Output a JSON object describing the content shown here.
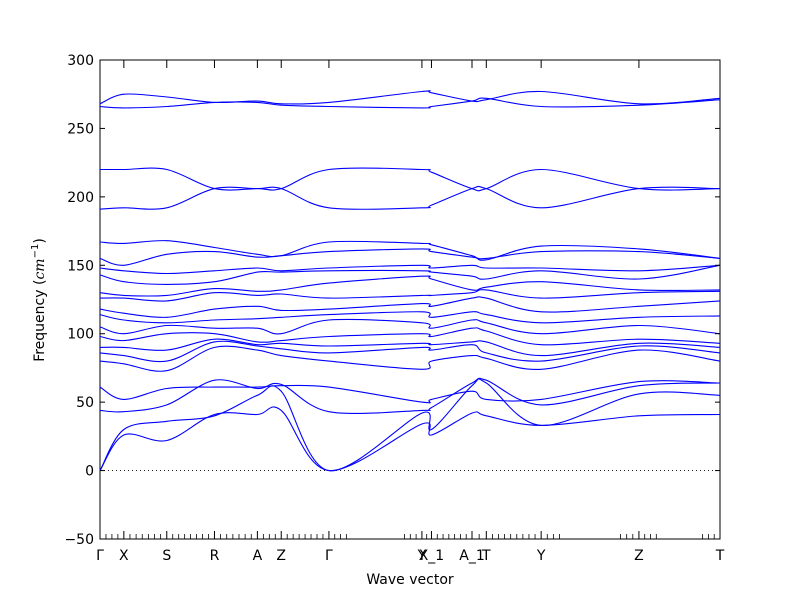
{
  "chart_data": {
    "type": "line",
    "xlabel": "Wave vector",
    "ylabel_main": "Frequency (",
    "ylabel_unit": "cm",
    "ylabel_sup": "−1",
    "ylabel_close": ")",
    "ylim": [
      -50,
      300
    ],
    "yticks": [
      "300",
      "250",
      "200",
      "150",
      "100",
      "50",
      "0",
      "−50"
    ],
    "ytick_values": [
      300,
      250,
      200,
      150,
      100,
      50,
      0,
      -50
    ],
    "xlim": [
      0,
      13
    ],
    "high_symmetry_points": [
      {
        "label": "Γ",
        "x": 0
      },
      {
        "label": "X",
        "x": 0.5
      },
      {
        "label": "S",
        "x": 1.4
      },
      {
        "label": "R",
        "x": 2.4
      },
      {
        "label": "A",
        "x": 3.3
      },
      {
        "label": "Z",
        "x": 3.8
      },
      {
        "label": "Γ",
        "x": 4.8
      },
      {
        "label": "Y",
        "x": 6.75
      },
      {
        "label": "X_1",
        "x": 6.95
      },
      {
        "label": "A_1",
        "x": 7.8
      },
      {
        "label": "T",
        "x": 8.1
      },
      {
        "label": "Y",
        "x": 9.25
      },
      {
        "label": "Z",
        "x": 11.3
      },
      {
        "label": "T",
        "x": 13
      }
    ],
    "zero_line": 0,
    "line_color": "#0000ff",
    "series": [
      {
        "x": [
          0,
          0.5,
          1.4,
          2.4,
          3.3,
          3.8,
          4.8,
          6.75,
          6.95,
          7.8,
          8.1,
          9.25,
          11.3,
          13
        ],
        "values": [
          0,
          26,
          22,
          41,
          41,
          44,
          0,
          34,
          26,
          42,
          40,
          33,
          40,
          41
        ]
      },
      {
        "x": [
          0,
          0.5,
          1.4,
          2.4,
          3.3,
          3.8,
          4.8,
          6.75,
          6.95,
          7.8,
          8.1,
          9.25,
          11.3,
          13
        ],
        "values": [
          0,
          30,
          36,
          40,
          55,
          58,
          0,
          42,
          30,
          62,
          64,
          33,
          56,
          55
        ]
      },
      {
        "x": [
          0,
          0.5,
          1.4,
          2.4,
          3.3,
          3.8,
          4.8,
          6.75,
          6.95,
          7.8,
          8.1,
          9.25,
          11.3,
          13
        ],
        "values": [
          44,
          43,
          48,
          66,
          60,
          63,
          43,
          44,
          46,
          64,
          66,
          48,
          62,
          64
        ]
      },
      {
        "x": [
          0,
          0.5,
          1.4,
          2.4,
          3.3,
          3.8,
          4.8,
          6.75,
          6.95,
          7.8,
          8.1,
          9.25,
          11.3,
          13
        ],
        "values": [
          61,
          52,
          60,
          61,
          61,
          62,
          61,
          50,
          52,
          58,
          52,
          52,
          65,
          64
        ]
      },
      {
        "x": [
          0,
          0.5,
          1.4,
          2.4,
          3.3,
          3.8,
          4.8,
          6.75,
          6.95,
          7.8,
          8.1,
          9.25,
          11.3,
          13
        ],
        "values": [
          80,
          78,
          73,
          90,
          88,
          84,
          80,
          74,
          80,
          84,
          82,
          74,
          88,
          80
        ]
      },
      {
        "x": [
          0,
          0.5,
          1.4,
          2.4,
          3.3,
          3.8,
          4.8,
          6.75,
          6.95,
          7.8,
          8.1,
          9.25,
          11.3,
          13
        ],
        "values": [
          86,
          84,
          80,
          94,
          91,
          89,
          86,
          90,
          88,
          92,
          86,
          80,
          91,
          86
        ]
      },
      {
        "x": [
          0,
          0.5,
          1.4,
          2.4,
          3.3,
          3.8,
          4.8,
          6.75,
          6.95,
          7.8,
          8.1,
          9.25,
          11.3,
          13
        ],
        "values": [
          90,
          90,
          88,
          96,
          92,
          93,
          91,
          93,
          92,
          94,
          94,
          84,
          93,
          90
        ]
      },
      {
        "x": [
          0,
          0.5,
          1.4,
          2.4,
          3.3,
          3.8,
          4.8,
          6.75,
          6.95,
          7.8,
          8.1,
          9.25,
          11.3,
          13
        ],
        "values": [
          98,
          95,
          100,
          100,
          94,
          95,
          98,
          100,
          98,
          104,
          102,
          92,
          96,
          93
        ]
      },
      {
        "x": [
          0,
          0.5,
          1.4,
          2.4,
          3.3,
          3.8,
          4.8,
          6.75,
          6.95,
          7.8,
          8.1,
          9.25,
          11.3,
          13
        ],
        "values": [
          105,
          100,
          106,
          104,
          104,
          100,
          110,
          108,
          104,
          110,
          108,
          100,
          106,
          100
        ]
      },
      {
        "x": [
          0,
          0.5,
          1.4,
          2.4,
          3.3,
          3.8,
          4.8,
          6.75,
          6.95,
          7.8,
          8.1,
          9.25,
          11.3,
          13
        ],
        "values": [
          114,
          110,
          108,
          110,
          111,
          112,
          114,
          116,
          112,
          116,
          114,
          108,
          112,
          113
        ]
      },
      {
        "x": [
          0,
          0.5,
          1.4,
          2.4,
          3.3,
          3.8,
          4.8,
          6.75,
          6.95,
          7.8,
          8.1,
          9.25,
          11.3,
          13
        ],
        "values": [
          118,
          115,
          112,
          118,
          120,
          117,
          118,
          122,
          120,
          126,
          126,
          116,
          120,
          124
        ]
      },
      {
        "x": [
          0,
          0.5,
          1.4,
          2.4,
          3.3,
          3.8,
          4.8,
          6.75,
          6.95,
          7.8,
          8.1,
          9.25,
          11.3,
          13
        ],
        "values": [
          126,
          126,
          124,
          130,
          128,
          129,
          126,
          128,
          128,
          130,
          132,
          126,
          130,
          131
        ]
      },
      {
        "x": [
          0,
          0.5,
          1.4,
          2.4,
          3.3,
          3.8,
          4.8,
          6.75,
          6.95,
          7.8,
          8.1,
          9.25,
          11.3,
          13
        ],
        "values": [
          130,
          128,
          128,
          133,
          131,
          132,
          137,
          142,
          140,
          132,
          134,
          138,
          132,
          132
        ]
      },
      {
        "x": [
          0,
          0.5,
          1.4,
          2.4,
          3.3,
          3.8,
          4.8,
          6.75,
          6.95,
          7.8,
          8.1,
          9.25,
          11.3,
          13
        ],
        "values": [
          143,
          138,
          136,
          138,
          145,
          145,
          146,
          146,
          145,
          142,
          140,
          146,
          140,
          150
        ]
      },
      {
        "x": [
          0,
          0.5,
          1.4,
          2.4,
          3.3,
          3.8,
          4.8,
          6.75,
          6.95,
          7.8,
          8.1,
          9.25,
          11.3,
          13
        ],
        "values": [
          148,
          146,
          144,
          146,
          148,
          146,
          148,
          150,
          148,
          150,
          148,
          148,
          146,
          150
        ]
      },
      {
        "x": [
          0,
          0.5,
          1.4,
          2.4,
          3.3,
          3.8,
          4.8,
          6.75,
          6.95,
          7.8,
          8.1,
          9.25,
          11.3,
          13
        ],
        "values": [
          155,
          150,
          158,
          160,
          156,
          157,
          160,
          162,
          160,
          156,
          155,
          160,
          160,
          155
        ]
      },
      {
        "x": [
          0,
          0.5,
          1.4,
          2.4,
          3.3,
          3.8,
          4.8,
          6.75,
          6.95,
          7.8,
          8.1,
          9.25,
          11.3,
          13
        ],
        "values": [
          167,
          166,
          168,
          163,
          158,
          157,
          167,
          166,
          165,
          157,
          154,
          164,
          162,
          155
        ]
      },
      {
        "x": [
          0,
          0.5,
          1.4,
          2.4,
          3.3,
          3.8,
          4.8,
          6.75,
          6.95,
          7.8,
          8.1,
          9.25,
          11.3,
          13
        ],
        "values": [
          191,
          192,
          192,
          206,
          206,
          206,
          192,
          192,
          194,
          206,
          206,
          192,
          206,
          206
        ]
      },
      {
        "x": [
          0,
          0.5,
          1.4,
          2.4,
          3.3,
          3.8,
          4.8,
          6.75,
          6.95,
          7.8,
          8.1,
          9.25,
          11.3,
          13
        ],
        "values": [
          220,
          220,
          220,
          206,
          206,
          206,
          220,
          220,
          218,
          206,
          206,
          220,
          206,
          206
        ]
      },
      {
        "x": [
          0,
          0.5,
          1.4,
          2.4,
          3.3,
          3.8,
          4.8,
          6.75,
          6.95,
          7.8,
          8.1,
          9.25,
          11.3,
          13
        ],
        "values": [
          266,
          265,
          266,
          269,
          269,
          267,
          266,
          265,
          266,
          270,
          272,
          266,
          267,
          271
        ]
      },
      {
        "x": [
          0,
          0.5,
          1.4,
          2.4,
          3.3,
          3.8,
          4.8,
          6.75,
          6.95,
          7.8,
          8.1,
          9.25,
          11.3,
          13
        ],
        "values": [
          268,
          275,
          273,
          269,
          270,
          268,
          269,
          277,
          276,
          270,
          271,
          277,
          268,
          272
        ]
      }
    ]
  }
}
